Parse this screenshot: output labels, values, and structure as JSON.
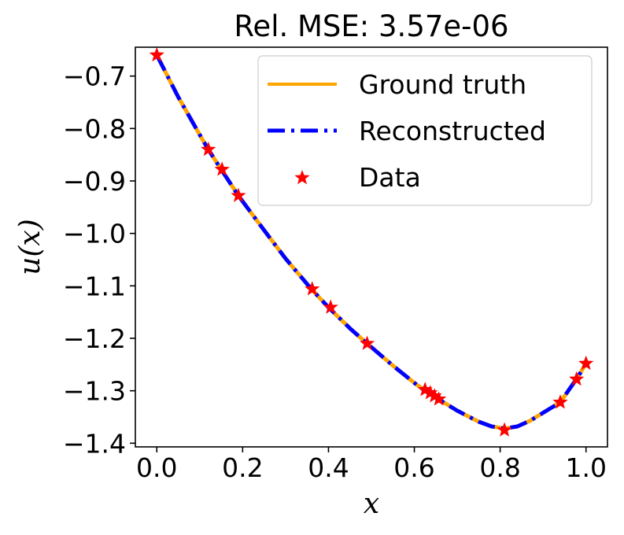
{
  "chart_data": {
    "type": "line",
    "title": "Rel. MSE: 3.57e-06",
    "xlabel": "x",
    "ylabel": "u(x)",
    "xlim": [
      -0.05,
      1.05
    ],
    "ylim": [
      -1.407,
      -0.645
    ],
    "xticks": [
      0.0,
      0.2,
      0.4,
      0.6,
      0.8,
      1.0
    ],
    "xtick_labels": [
      "0.0",
      "0.2",
      "0.4",
      "0.6",
      "0.8",
      "1.0"
    ],
    "yticks": [
      -0.7,
      -0.8,
      -0.9,
      -1.0,
      -1.1,
      -1.2,
      -1.3,
      -1.4
    ],
    "ytick_labels": [
      "−0.7",
      "−0.8",
      "−0.9",
      "−1.0",
      "−1.1",
      "−1.2",
      "−1.3",
      "−1.4"
    ],
    "grid": false,
    "legend_position": "top-right",
    "series": [
      {
        "name": "Ground truth",
        "style": "solid",
        "color": "#FFA500",
        "x": [
          0.0,
          0.05,
          0.1,
          0.12,
          0.15,
          0.19,
          0.25,
          0.3,
          0.36,
          0.4,
          0.45,
          0.49,
          0.55,
          0.6,
          0.63,
          0.66,
          0.7,
          0.75,
          0.78,
          0.81,
          0.84,
          0.87,
          0.9,
          0.94,
          0.98,
          1.0
        ],
        "y": [
          -0.66,
          -0.74,
          -0.812,
          -0.84,
          -0.878,
          -0.928,
          -0.994,
          -1.048,
          -1.106,
          -1.141,
          -1.181,
          -1.21,
          -1.252,
          -1.285,
          -1.303,
          -1.318,
          -1.338,
          -1.359,
          -1.368,
          -1.372,
          -1.368,
          -1.357,
          -1.342,
          -1.322,
          -1.275,
          -1.248
        ]
      },
      {
        "name": "Reconstructed",
        "style": "dashdot",
        "color": "#0000FF",
        "x": [
          0.0,
          0.05,
          0.1,
          0.12,
          0.15,
          0.19,
          0.25,
          0.3,
          0.36,
          0.4,
          0.45,
          0.49,
          0.55,
          0.6,
          0.63,
          0.66,
          0.7,
          0.75,
          0.78,
          0.81,
          0.84,
          0.87,
          0.9,
          0.94,
          0.98,
          1.0
        ],
        "y": [
          -0.66,
          -0.74,
          -0.812,
          -0.84,
          -0.878,
          -0.928,
          -0.994,
          -1.048,
          -1.106,
          -1.141,
          -1.181,
          -1.21,
          -1.252,
          -1.285,
          -1.303,
          -1.318,
          -1.338,
          -1.359,
          -1.368,
          -1.372,
          -1.368,
          -1.357,
          -1.342,
          -1.322,
          -1.275,
          -1.248
        ]
      },
      {
        "name": "Data",
        "style": "markers",
        "marker": "star",
        "color": "#FF0000",
        "x": [
          0.0,
          0.12,
          0.152,
          0.19,
          0.362,
          0.405,
          0.49,
          0.625,
          0.637,
          0.647,
          0.657,
          0.81,
          0.94,
          0.978,
          1.0
        ],
        "y": [
          -0.66,
          -0.84,
          -0.878,
          -0.928,
          -1.106,
          -1.141,
          -1.21,
          -1.298,
          -1.304,
          -1.31,
          -1.316,
          -1.375,
          -1.322,
          -1.278,
          -1.248
        ]
      }
    ]
  }
}
